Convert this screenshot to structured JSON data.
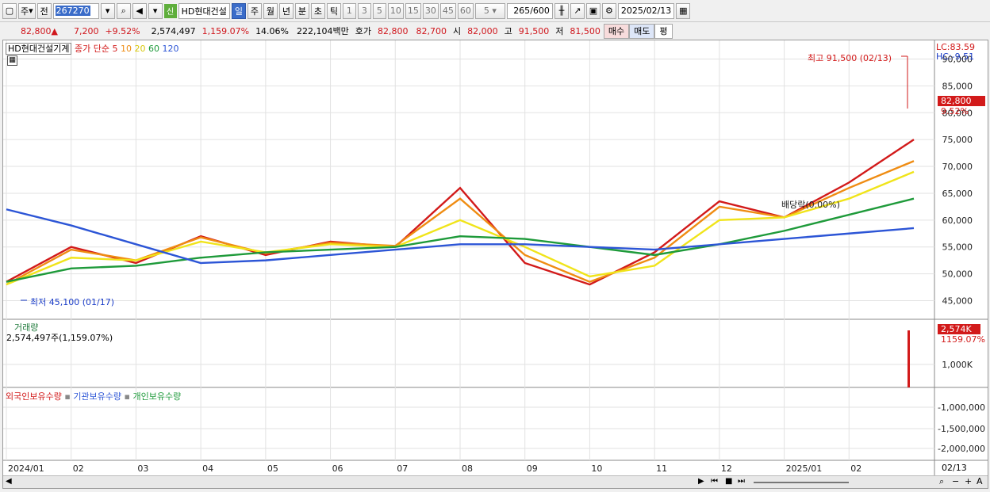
{
  "toolbar": {
    "type_label": "주",
    "prev_label": "전",
    "stock_code": "267270",
    "new_badge": "신",
    "stock_name": "HD현대건설",
    "periods": [
      "일",
      "주",
      "월",
      "년",
      "분",
      "초",
      "틱"
    ],
    "selected_period": "일",
    "intervals": [
      "1",
      "3",
      "5",
      "10",
      "15",
      "30",
      "45",
      "60"
    ],
    "count_value": "5",
    "range_value": "265",
    "range_total": "/600",
    "date_value": "2025/02/13"
  },
  "quote": {
    "price": "82,800",
    "price_arrow": "▲",
    "change": "7,200",
    "change_pct": "+9.52%",
    "volume": "2,574,497",
    "volume_ratio": "1,159.07%",
    "turnover": "14.06%",
    "amount": "222,104백만",
    "hoga_label": "호가",
    "ask": "82,800",
    "bid": "82,700",
    "open_label": "시",
    "open": "82,000",
    "high_label": "고",
    "high": "91,500",
    "low_label": "저",
    "low": "81,500",
    "buy_button": "매수",
    "sell_button": "매도",
    "eval_button": "평"
  },
  "price_panel": {
    "title": "HD현대건설기계",
    "ma_label": "종가 단순",
    "ma_periods": [
      "5",
      "10",
      "20",
      "60",
      "120"
    ],
    "ma_colors": [
      "#d21a1a",
      "#ef8c12",
      "#f0e41a",
      "#1e9a3a",
      "#2c55d6"
    ],
    "lc": "LC:83.59",
    "hc": "HC:-9.51",
    "high_note": "최고 91,500 (02/13)",
    "low_note": "최저 45,100 (01/17)",
    "dividend_note": "배당락(0.00%)",
    "last_price_tag": "82,800",
    "last_change_tag": "9.52%",
    "y_ticks": [
      "90,000",
      "85,000",
      "80,000",
      "75,000",
      "70,000",
      "65,000",
      "60,000",
      "55,000",
      "50,000",
      "45,000"
    ]
  },
  "volume_panel": {
    "title": "거래량",
    "current": "2,574,497주(1,159.07%)",
    "tag": "2,574K",
    "tag_pct": "1159.07%",
    "y_ticks": [
      "1,000K"
    ]
  },
  "holdings_panel": {
    "series_labels": [
      "외국인보유수량",
      "기관보유수량",
      "개인보유수량"
    ],
    "series_colors": [
      "#d21a1a",
      "#2c55d6",
      "#1e9a3a"
    ],
    "y_ticks": [
      "-1,000,000",
      "-1,500,000",
      "-2,000,000"
    ]
  },
  "x_axis": {
    "labels": [
      "2024/01",
      "02",
      "03",
      "04",
      "05",
      "06",
      "07",
      "08",
      "09",
      "10",
      "11",
      "12",
      "2025/01",
      "02"
    ],
    "right_label": "02/13"
  },
  "chart_data": {
    "type": "line",
    "title": "HD현대건설기계",
    "x": [
      "2024/01",
      "02",
      "03",
      "04",
      "05",
      "06",
      "07",
      "08",
      "09",
      "10",
      "11",
      "12",
      "2025/01",
      "02",
      "02/13"
    ],
    "ylim": [
      43000,
      92000
    ],
    "series": [
      {
        "name": "5",
        "values": [
          48500,
          55000,
          52000,
          57000,
          53500,
          56000,
          55000,
          66000,
          52000,
          48000,
          54000,
          63500,
          60500,
          67000,
          75000
        ]
      },
      {
        "name": "10",
        "values": [
          48000,
          54500,
          52500,
          56800,
          53800,
          55800,
          55200,
          64000,
          53500,
          48500,
          53000,
          62500,
          60500,
          66000,
          71000
        ]
      },
      {
        "name": "20",
        "values": [
          48000,
          53000,
          52500,
          56000,
          54000,
          55500,
          55000,
          60000,
          55000,
          49500,
          51500,
          60000,
          60500,
          64000,
          69000
        ]
      },
      {
        "name": "60",
        "values": [
          48500,
          51000,
          51500,
          53000,
          54000,
          54500,
          55000,
          57000,
          56500,
          55000,
          53500,
          55500,
          58000,
          61000,
          64000
        ]
      },
      {
        "name": "120",
        "values": [
          62000,
          59000,
          55500,
          52000,
          52500,
          53500,
          54500,
          55500,
          55500,
          55000,
          54500,
          55500,
          56500,
          57500,
          58500
        ]
      }
    ]
  }
}
